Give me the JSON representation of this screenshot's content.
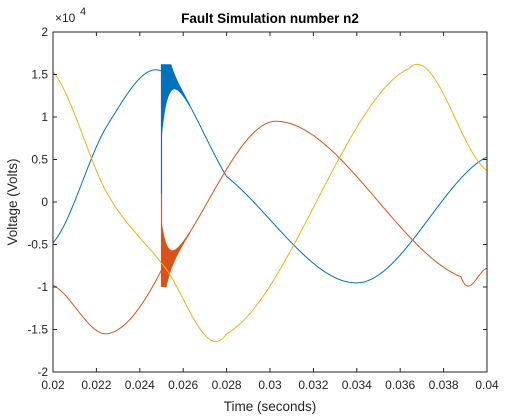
{
  "chart_data": {
    "type": "line",
    "title": "Fault Simulation number n2",
    "xlabel": "Time (seconds)",
    "ylabel": "Voltage (Volts)",
    "y_exponent_base": "×10",
    "y_exponent_power": "4",
    "xlim": [
      0.02,
      0.04
    ],
    "ylim": [
      -2,
      2
    ],
    "y_scale_factor": 10000,
    "xticks": [
      "0.02",
      "0.022",
      "0.024",
      "0.026",
      "0.028",
      "0.03",
      "0.032",
      "0.034",
      "0.036",
      "0.038",
      "0.04"
    ],
    "yticks": [
      "-2",
      "-1.5",
      "-1",
      "-0.5",
      "0",
      "0.5",
      "1",
      "1.5",
      "2"
    ],
    "grid": false,
    "box": true,
    "fault_time": 0.025,
    "series": [
      {
        "color": "#0072BD",
        "x": [
          0.02,
          0.0225,
          0.025,
          0.028,
          0.0341,
          0.04
        ],
        "y": [
          -0.48,
          0.9,
          1.54,
          0.3,
          -0.95,
          0.53
        ],
        "fault_oscillation_range": [
          0.1,
          1.62
        ]
      },
      {
        "color": "#D95319",
        "x": [
          0.02,
          0.0225,
          0.025,
          0.0303,
          0.0388,
          0.04
        ],
        "y": [
          -0.98,
          -1.55,
          -0.8,
          0.95,
          -0.88,
          -0.78
        ],
        "fault_oscillation_range": [
          -1.0,
          0.1
        ]
      },
      {
        "color": "#EDB120",
        "x": [
          0.02,
          0.0225,
          0.025,
          0.028,
          0.0364,
          0.04
        ],
        "y": [
          1.53,
          0.1,
          -0.72,
          -1.55,
          1.57,
          0.37
        ]
      }
    ]
  }
}
